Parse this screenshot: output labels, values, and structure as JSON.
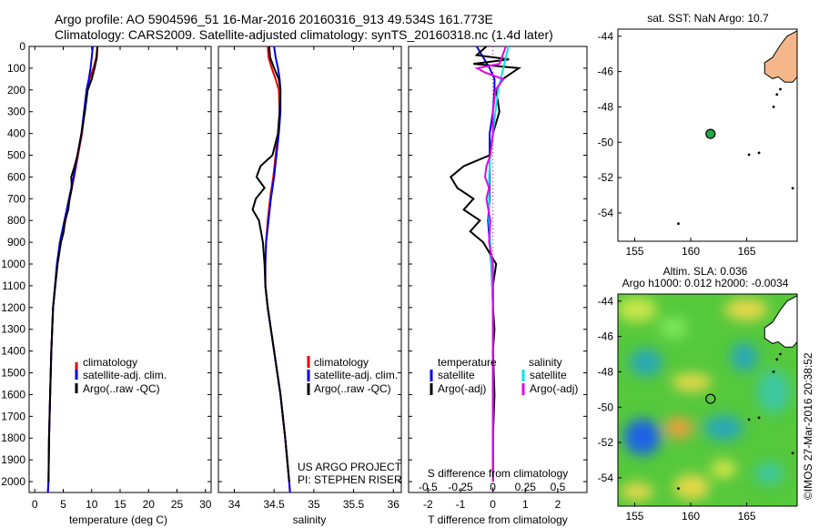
{
  "header": {
    "line1": "Argo profile: AO 5904596_51 16-Mar-2016 20160316_913 49.534S 161.773E",
    "line2": "Climatology: CARS2009. Satellite-adjusted climatology: synTS_20160318.nc (1.4d later)"
  },
  "depth_ticks": [
    0,
    100,
    200,
    300,
    400,
    500,
    600,
    700,
    800,
    900,
    1000,
    1100,
    1200,
    1300,
    1400,
    1500,
    1600,
    1700,
    1800,
    1900,
    2000
  ],
  "colors": {
    "clim": "#e60000",
    "sat": "#0000e6",
    "argo": "#000000",
    "sal_sat": "#00e6e6",
    "sal_argo": "#e600e6",
    "map_land": "#f5b78a",
    "float_marker": "#22aa44"
  },
  "chart_data": [
    {
      "id": "temperature",
      "type": "line",
      "xlabel": "temperature (deg C)",
      "xlim": [
        -1,
        31
      ],
      "ylim": [
        0,
        2050
      ],
      "xticks": [
        0,
        5,
        10,
        15,
        20,
        25,
        30
      ],
      "legend": [
        "climatology",
        "satellite-adj. clim.",
        "Argo(..raw -QC)"
      ],
      "series": [
        {
          "name": "climatology",
          "color": "clim",
          "depth": [
            0,
            50,
            100,
            150,
            200,
            400,
            600,
            800,
            900,
            1000,
            1200,
            1400,
            1600,
            1800,
            2000,
            2050
          ],
          "values": [
            11,
            10.8,
            10.3,
            9.6,
            9.2,
            8.3,
            6.9,
            5.4,
            4.5,
            3.9,
            3.2,
            2.9,
            2.7,
            2.5,
            2.4,
            2.3
          ]
        },
        {
          "name": "satellite-adj. clim.",
          "color": "sat",
          "depth": [
            0,
            50,
            100,
            150,
            200,
            400,
            600,
            800,
            900,
            1000,
            1200,
            1400,
            1600,
            1800,
            2000,
            2050
          ],
          "values": [
            10.2,
            10,
            9.8,
            9.5,
            9.1,
            8.2,
            6.8,
            5.2,
            4.4,
            3.9,
            3.2,
            2.9,
            2.7,
            2.5,
            2.4,
            2.3
          ]
        },
        {
          "name": "Argo(..raw -QC)",
          "color": "argo",
          "depth": [
            0,
            50,
            100,
            150,
            200,
            300,
            400,
            500,
            550,
            600,
            650,
            700,
            750,
            800,
            850,
            900,
            1000,
            1200,
            1400,
            1600,
            1800,
            2000
          ],
          "values": [
            11,
            10.9,
            10.5,
            10,
            9.3,
            8.8,
            8.2,
            7.5,
            7,
            6.4,
            6.5,
            6.1,
            5.9,
            5.3,
            5.1,
            4.6,
            4,
            3.2,
            2.9,
            2.7,
            2.5,
            2.4
          ]
        }
      ]
    },
    {
      "id": "salinity",
      "type": "line",
      "xlabel": "salinity",
      "xlim": [
        33.8,
        36.1
      ],
      "ylim": [
        0,
        2050
      ],
      "xticks": [
        34,
        34.5,
        35,
        35.5,
        36
      ],
      "legend": [
        "climatology",
        "satellite-adj. clim.",
        "Argo(..raw -QC)"
      ],
      "series": [
        {
          "name": "climatology",
          "color": "clim",
          "depth": [
            0,
            50,
            100,
            150,
            200,
            300,
            400,
            500,
            600,
            700,
            800,
            900,
            1000,
            1100,
            1200,
            1400,
            1600,
            1800,
            2000,
            2050
          ],
          "values": [
            34.42,
            34.43,
            34.47,
            34.52,
            34.56,
            34.57,
            34.55,
            34.52,
            34.49,
            34.45,
            34.42,
            34.4,
            34.39,
            34.39,
            34.42,
            34.5,
            34.58,
            34.64,
            34.69,
            34.7
          ]
        },
        {
          "name": "satellite-adj. clim.",
          "color": "sat",
          "depth": [
            0,
            50,
            100,
            150,
            200,
            300,
            400,
            500,
            600,
            700,
            800,
            900,
            1000,
            1100,
            1200,
            1400,
            1600,
            1800,
            2000,
            2050
          ],
          "values": [
            34.5,
            34.52,
            34.55,
            34.57,
            34.58,
            34.58,
            34.56,
            34.53,
            34.5,
            34.46,
            34.43,
            34.4,
            34.39,
            34.39,
            34.42,
            34.5,
            34.58,
            34.64,
            34.69,
            34.7
          ]
        },
        {
          "name": "Argo(..raw -QC)",
          "color": "argo",
          "depth": [
            0,
            50,
            100,
            150,
            200,
            300,
            400,
            500,
            550,
            600,
            650,
            700,
            750,
            800,
            900,
            1000,
            1100,
            1200,
            1400,
            1600,
            1800,
            2000
          ],
          "values": [
            34.44,
            34.45,
            34.5,
            34.56,
            34.58,
            34.57,
            34.55,
            34.48,
            34.33,
            34.28,
            34.38,
            34.27,
            34.23,
            34.31,
            34.36,
            34.38,
            34.39,
            34.42,
            34.5,
            34.58,
            34.64,
            34.69
          ]
        }
      ]
    },
    {
      "id": "difference",
      "type": "line",
      "xlabel": "T difference from climatology",
      "top_label": "S difference from climatology",
      "xlim": [
        -2.6,
        2.9
      ],
      "ylim": [
        0,
        2050
      ],
      "xticks": [
        -2,
        -1,
        0,
        1,
        2
      ],
      "xticks_s": [
        -0.5,
        -0.25,
        0,
        0.25,
        0.5
      ],
      "legend_headers": [
        "temperature",
        "salinity"
      ],
      "legend": [
        "satellite",
        "Argo(-adj)",
        "satellite",
        "Argo(-adj)"
      ],
      "series": [
        {
          "name": "temperature satellite",
          "color": "sat",
          "depth": [
            0,
            50,
            100,
            150,
            200,
            300,
            400,
            500,
            600,
            700,
            800,
            1000,
            1200,
            1400,
            1600,
            1800,
            2000
          ],
          "values": [
            -0.5,
            -0.3,
            -0.1,
            0.05,
            0.05,
            0,
            -0.1,
            -0.1,
            -0.1,
            -0.1,
            -0.15,
            -0.05,
            0,
            0,
            0,
            0,
            0
          ]
        },
        {
          "name": "temperature Argo(-adj)",
          "color": "argo",
          "depth": [
            0,
            40,
            60,
            80,
            100,
            120,
            150,
            200,
            300,
            400,
            500,
            550,
            600,
            650,
            700,
            750,
            800,
            850,
            900,
            950,
            1000,
            1100,
            1200,
            1300,
            1400,
            1600,
            1800,
            2000
          ],
          "values": [
            -0.2,
            -0.5,
            0.5,
            -0.6,
            0.8,
            0.6,
            0.3,
            0.1,
            0.2,
            0,
            -0.1,
            -0.9,
            -1.3,
            -1.1,
            -0.6,
            -0.9,
            -0.4,
            -0.7,
            -0.3,
            -0.1,
            0.1,
            0,
            0,
            0.05,
            0,
            0.05,
            0,
            0
          ]
        },
        {
          "name": "salinity satellite",
          "color": "sal_sat",
          "depth": [
            0,
            100,
            200,
            300,
            400,
            500,
            600,
            700,
            800,
            900,
            1000,
            1200,
            1400,
            1600,
            1800,
            2000
          ],
          "values": [
            0.12,
            0.08,
            0.04,
            0.02,
            0.0,
            -0.02,
            -0.03,
            -0.03,
            -0.03,
            -0.02,
            -0.01,
            0,
            0,
            0,
            0,
            0
          ]
        },
        {
          "name": "salinity Argo(-adj)",
          "color": "sal_argo",
          "depth": [
            0,
            80,
            100,
            120,
            150,
            200,
            300,
            400,
            500,
            550,
            600,
            650,
            700,
            800,
            900,
            1000,
            1100,
            1200,
            1400,
            1600,
            1800,
            2000
          ],
          "values": [
            0.1,
            0.05,
            -0.12,
            -0.06,
            0.08,
            0.02,
            0,
            0,
            -0.02,
            -0.05,
            -0.06,
            -0.03,
            -0.05,
            -0.02,
            -0.03,
            0,
            0,
            0,
            0,
            0,
            0,
            0
          ]
        }
      ]
    },
    {
      "id": "sst_map",
      "type": "scatter",
      "title": "sat. SST: NaN Argo: 10.7",
      "xlim": [
        153.5,
        169.5
      ],
      "ylim": [
        -55.6,
        -43.6
      ],
      "xticks": [
        155,
        160,
        165
      ],
      "yticks": [
        -44,
        -46,
        -48,
        -50,
        -52,
        -54
      ],
      "points": [
        {
          "lon": 161.77,
          "lat": -49.53
        }
      ]
    },
    {
      "id": "sla_map",
      "type": "heatmap",
      "title_line1": "Altim. SLA: 0.036",
      "title_line2": "Argo h1000: 0.012 h2000: -0.0034",
      "xlim": [
        153.5,
        169.5
      ],
      "ylim": [
        -55.6,
        -43.6
      ],
      "xticks": [
        155,
        160,
        165
      ],
      "yticks": [
        -44,
        -46,
        -48,
        -50,
        -52,
        -54
      ],
      "points": [
        {
          "lon": 161.77,
          "lat": -49.53
        }
      ]
    }
  ],
  "annotations": {
    "project_line1": "US ARGO PROJECT",
    "project_line2": "PI: STEPHEN RISER",
    "credit": "©IMOS 27-Mar-2016 20:38:52"
  }
}
